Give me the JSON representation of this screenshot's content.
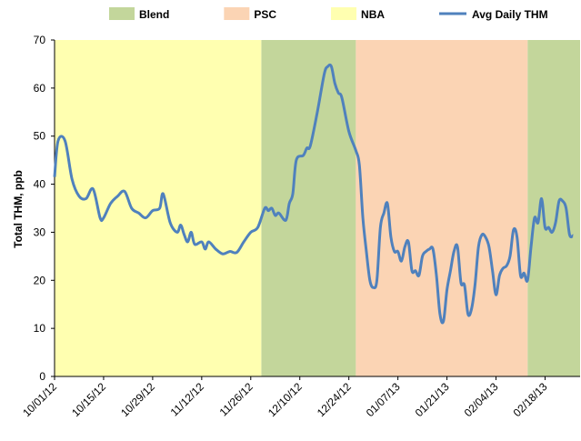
{
  "chart_data": {
    "type": "line",
    "ylabel": "Total THM, ppb",
    "ylim": [
      0,
      70
    ],
    "yticks": [
      0,
      10,
      20,
      30,
      40,
      50,
      60,
      70
    ],
    "xlim": [
      "10/01/12",
      "02/28/13"
    ],
    "xticks": [
      "10/01/12",
      "10/15/12",
      "10/29/12",
      "11/12/12",
      "11/26/12",
      "12/10/12",
      "12/24/12",
      "01/07/13",
      "01/21/13",
      "02/04/13",
      "02/18/13"
    ],
    "regions": [
      {
        "name": "Blend",
        "color": "#c3d69b",
        "spans": [
          [
            "11/29/12",
            "12/26/12"
          ],
          [
            "02/13/13",
            "02/28/13"
          ]
        ]
      },
      {
        "name": "PSC",
        "color": "#fbd4b4",
        "spans": [
          [
            "12/26/12",
            "02/13/13"
          ]
        ]
      },
      {
        "name": "NBA",
        "color": "#ffffb0",
        "spans": [
          [
            "10/01/12",
            "11/29/12"
          ]
        ]
      }
    ],
    "x": [
      "10/01/12",
      "10/02/12",
      "10/04/12",
      "10/06/12",
      "10/08/12",
      "10/10/12",
      "10/12/12",
      "10/14/12",
      "10/15/12",
      "10/17/12",
      "10/19/12",
      "10/21/12",
      "10/23/12",
      "10/25/12",
      "10/27/12",
      "10/29/12",
      "10/31/12",
      "11/01/12",
      "11/03/12",
      "11/05/12",
      "11/06/12",
      "11/07/12",
      "11/08/12",
      "11/09/12",
      "11/10/12",
      "11/12/12",
      "11/13/12",
      "11/14/12",
      "11/16/12",
      "11/18/12",
      "11/20/12",
      "11/22/12",
      "11/24/12",
      "11/26/12",
      "11/28/12",
      "11/30/12",
      "12/01/12",
      "12/02/12",
      "12/03/12",
      "12/04/12",
      "12/06/12",
      "12/07/12",
      "12/08/12",
      "12/09/12",
      "12/11/12",
      "12/12/12",
      "12/13/12",
      "12/15/12",
      "12/17/12",
      "12/18/12",
      "12/19/12",
      "12/20/12",
      "12/21/12",
      "12/22/12",
      "12/24/12",
      "12/26/12",
      "12/27/12",
      "12/28/12",
      "12/29/12",
      "12/30/12",
      "12/31/12",
      "01/01/13",
      "01/02/13",
      "01/03/13",
      "01/04/13",
      "01/05/13",
      "01/06/13",
      "01/07/13",
      "01/08/13",
      "01/09/13",
      "01/10/13",
      "01/11/13",
      "01/12/13",
      "01/13/13",
      "01/14/13",
      "01/15/13",
      "01/16/13",
      "01/17/13",
      "01/18/13",
      "01/19/13",
      "01/20/13",
      "01/21/13",
      "01/22/13",
      "01/23/13",
      "01/24/13",
      "01/25/13",
      "01/26/13",
      "01/27/13",
      "01/28/13",
      "01/29/13",
      "01/30/13",
      "01/31/13",
      "02/01/13",
      "02/02/13",
      "02/03/13",
      "02/04/13",
      "02/05/13",
      "02/06/13",
      "02/07/13",
      "02/08/13",
      "02/09/13",
      "02/10/13",
      "02/11/13",
      "02/12/13",
      "02/13/13",
      "02/14/13",
      "02/15/13",
      "02/16/13",
      "02/17/13",
      "02/18/13",
      "02/19/13",
      "02/20/13",
      "02/21/13",
      "02/22/13",
      "02/23/13",
      "02/24/13",
      "02/25/13",
      "02/26/13"
    ],
    "series": [
      {
        "name": "Avg Daily THM",
        "color": "#4f81bd",
        "values": [
          41.5,
          49,
          49,
          41,
          37.5,
          37,
          39,
          33,
          33,
          36,
          37.5,
          38.5,
          35,
          34,
          33,
          34.5,
          35,
          38,
          32,
          30,
          31.5,
          29.5,
          28,
          30,
          27.5,
          28,
          26.5,
          28,
          26.5,
          25.5,
          26,
          25.8,
          28,
          30,
          31,
          35,
          34.5,
          35,
          33.5,
          34,
          32.5,
          36,
          38,
          45,
          46,
          47.5,
          48,
          55,
          63,
          64.5,
          64.5,
          61,
          59,
          58,
          51,
          47,
          44,
          33,
          26,
          20,
          18.5,
          20,
          31,
          34,
          36,
          29,
          26,
          26,
          24,
          27,
          28,
          22,
          22,
          21,
          25,
          26,
          26.5,
          26.5,
          21,
          13,
          11.5,
          18,
          22,
          26,
          27,
          19.5,
          19,
          13,
          14,
          19,
          27,
          29.5,
          29,
          27,
          22,
          17,
          21,
          22.5,
          23,
          25,
          30.5,
          29,
          21,
          21.5,
          20,
          27,
          33,
          32,
          37,
          31,
          31,
          30,
          32,
          36.5,
          36.5,
          35,
          29.5,
          29.3
        ]
      }
    ]
  }
}
